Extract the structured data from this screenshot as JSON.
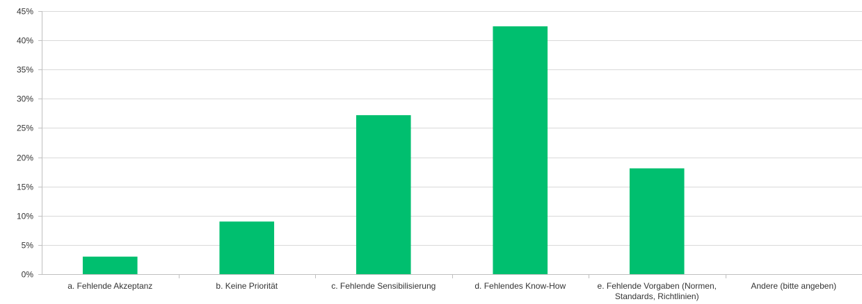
{
  "chart_data": {
    "type": "bar",
    "title": "",
    "xlabel": "",
    "ylabel": "",
    "categories": [
      "a. Fehlende Akzeptanz",
      "b. Keine Priorität",
      "c. Fehlende Sensibilisierung",
      "d. Fehlendes Know-How",
      "e. Fehlende Vorgaben (Normen, Standards, Richtlinien)",
      "Andere (bitte angeben)"
    ],
    "category_label_lines": [
      [
        "a. Fehlende Akzeptanz"
      ],
      [
        "b. Keine Priorität"
      ],
      [
        "c. Fehlende Sensibilisierung"
      ],
      [
        "d. Fehlendes Know-How"
      ],
      [
        "e. Fehlende Vorgaben (Normen,",
        "Standards, Richtlinien)"
      ],
      [
        "Andere (bitte angeben)"
      ]
    ],
    "values": [
      3,
      9,
      27.2,
      42.4,
      18.1,
      0
    ],
    "ylim": [
      0,
      45
    ],
    "yticks": [
      0,
      5,
      10,
      15,
      20,
      25,
      30,
      35,
      40,
      45
    ],
    "ytick_labels": [
      "0%",
      "5%",
      "10%",
      "15%",
      "20%",
      "25%",
      "30%",
      "35%",
      "40%",
      "45%"
    ],
    "grid": true,
    "legend": "none",
    "bar_color": "#00BF6F",
    "grid_color": "#D9D9D9",
    "axis_color": "#BFBFBF"
  }
}
